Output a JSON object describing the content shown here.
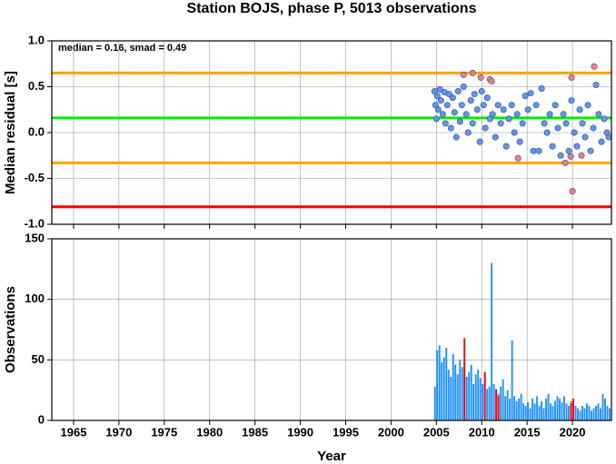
{
  "chart_data": [
    {
      "type": "scatter",
      "title": "Station BOJS, phase P, 5013 observations",
      "ylabel": "Median residual [s]",
      "annotation": "median = 0.16, smad = 0.49",
      "xlim": [
        1962.6,
        2024.3
      ],
      "xticks": [
        1965,
        1970,
        1975,
        1980,
        1985,
        1990,
        1995,
        2000,
        2005,
        2010,
        2015,
        2020
      ],
      "ylim": [
        -1,
        1
      ],
      "yticks": [
        {
          "value": -1,
          "label": "-1.0"
        },
        {
          "value": -0.5,
          "label": "-0.5"
        },
        {
          "value": 0,
          "label": "0.0"
        },
        {
          "value": 0.5,
          "label": "0.5"
        },
        {
          "value": 1,
          "label": "1.0"
        }
      ],
      "grid": true,
      "reference_lines": [
        {
          "value": 0.65,
          "color": "#ffa500"
        },
        {
          "value": 0.16,
          "color": "#00ee00"
        },
        {
          "value": -0.33,
          "color": "#ffa500"
        },
        {
          "value": -0.81,
          "color": "#ff0000"
        }
      ],
      "series": [
        {
          "color": "#6495ed",
          "x": [
            2004.8,
            2004.9,
            2005.0,
            2005.1,
            2005.2,
            2005.4,
            2005.5,
            2005.7,
            2005.9,
            2006.0,
            2006.2,
            2006.4,
            2006.6,
            2006.8,
            2007.0,
            2007.2,
            2007.4,
            2007.6,
            2007.8,
            2008.0,
            2008.3,
            2008.5,
            2008.8,
            2009.0,
            2009.2,
            2009.5,
            2009.8,
            2010.0,
            2010.2,
            2010.4,
            2010.6,
            2010.9,
            2011.2,
            2011.5,
            2011.8,
            2012.1,
            2012.4,
            2012.7,
            2013.0,
            2013.3,
            2013.6,
            2013.9,
            2014.2,
            2014.5,
            2014.8,
            2015.1,
            2015.4,
            2015.7,
            2016.0,
            2016.3,
            2016.6,
            2016.9,
            2017.2,
            2017.5,
            2017.8,
            2018.1,
            2018.4,
            2018.7,
            2019.0,
            2019.3,
            2019.6,
            2019.9,
            2020.2,
            2020.5,
            2020.8,
            2021.1,
            2021.4,
            2021.7,
            2022.0,
            2022.3,
            2022.6,
            2022.9,
            2023.2,
            2023.5,
            2023.8,
            2024.0
          ],
          "values": [
            0.45,
            0.3,
            0.15,
            0.4,
            0.25,
            0.47,
            0.35,
            0.2,
            0.44,
            0.1,
            0.3,
            0.42,
            0.05,
            0.38,
            0.22,
            -0.05,
            0.45,
            0.12,
            0.3,
            0.5,
            0.2,
            0.0,
            0.35,
            0.1,
            0.42,
            0.25,
            -0.1,
            0.45,
            0.3,
            0.05,
            0.38,
            0.15,
            0.2,
            -0.05,
            0.3,
            0.1,
            0.25,
            -0.15,
            0.15,
            0.3,
            0.0,
            0.2,
            -0.1,
            0.1,
            0.4,
            0.25,
            0.43,
            -0.2,
            0.3,
            -0.2,
            0.48,
            0.1,
            0.0,
            0.2,
            -0.15,
            0.3,
            0.05,
            -0.25,
            0.2,
            0.1,
            -0.2,
            0.35,
            0.0,
            -0.15,
            0.25,
            0.1,
            -0.05,
            0.3,
            -0.2,
            0.05,
            0.52,
            0.2,
            -0.1,
            0.15,
            0.0,
            -0.05
          ]
        },
        {
          "color": "#f08080",
          "x": [
            2008.0,
            2009.0,
            2009.9,
            2010.9,
            2011.1,
            2014.0,
            2019.2,
            2019.9,
            2019.8,
            2020.0,
            2021.0,
            2022.4
          ],
          "values": [
            0.63,
            0.65,
            0.6,
            0.58,
            0.56,
            -0.28,
            -0.33,
            0.6,
            -0.26,
            -0.64,
            -0.25,
            0.72
          ]
        }
      ]
    },
    {
      "type": "histogram",
      "ylabel": "Observations",
      "xlabel": "Year",
      "xlim": [
        1962.6,
        2024.3
      ],
      "xticks": [
        1965,
        1970,
        1975,
        1980,
        1985,
        1990,
        1995,
        2000,
        2005,
        2010,
        2015,
        2020
      ],
      "ylim": [
        0,
        150
      ],
      "yticks": [
        0,
        50,
        100,
        150
      ],
      "grid": true,
      "bins": [
        2004.75,
        2005.0,
        2005.25,
        2005.5,
        2005.75,
        2006.0,
        2006.25,
        2006.5,
        2006.75,
        2007.0,
        2007.25,
        2007.5,
        2007.75,
        2008.0,
        2008.25,
        2008.5,
        2008.75,
        2009.0,
        2009.25,
        2009.5,
        2009.75,
        2010.0,
        2010.25,
        2010.5,
        2010.75,
        2011.0,
        2011.25,
        2011.5,
        2011.75,
        2012.0,
        2012.25,
        2012.5,
        2012.75,
        2013.0,
        2013.25,
        2013.5,
        2013.75,
        2014.0,
        2014.25,
        2014.5,
        2014.75,
        2015.0,
        2015.25,
        2015.5,
        2015.75,
        2016.0,
        2016.25,
        2016.5,
        2016.75,
        2017.0,
        2017.25,
        2017.5,
        2017.75,
        2018.0,
        2018.25,
        2018.5,
        2018.75,
        2019.0,
        2019.25,
        2019.5,
        2019.75,
        2020.0,
        2020.25,
        2020.5,
        2020.75,
        2021.0,
        2021.25,
        2021.5,
        2021.75,
        2022.0,
        2022.25,
        2022.5,
        2022.75,
        2023.0,
        2023.25,
        2023.5,
        2023.75,
        2024.0,
        2024.25
      ],
      "series": [
        {
          "color": "#1e90ff",
          "values": [
            28,
            58,
            62,
            48,
            52,
            60,
            42,
            36,
            55,
            46,
            38,
            50,
            44,
            48,
            36,
            40,
            46,
            30,
            38,
            42,
            35,
            30,
            40,
            26,
            28,
            130,
            30,
            26,
            22,
            28,
            34,
            20,
            25,
            18,
            66,
            20,
            16,
            18,
            22,
            14,
            12,
            15,
            10,
            18,
            14,
            20,
            12,
            16,
            10,
            18,
            22,
            14,
            12,
            16,
            20,
            18,
            15,
            20,
            14,
            12,
            16,
            14,
            12,
            10,
            8,
            12,
            10,
            14,
            12,
            8,
            10,
            12,
            14,
            10,
            22,
            18,
            12,
            10
          ]
        },
        {
          "color": "#ff0000",
          "values": [
            null,
            null,
            null,
            null,
            null,
            null,
            null,
            null,
            null,
            null,
            null,
            null,
            null,
            68,
            null,
            null,
            null,
            null,
            null,
            null,
            null,
            null,
            40,
            null,
            null,
            null,
            null,
            25,
            20,
            null,
            null,
            null,
            null,
            null,
            null,
            null,
            null,
            null,
            null,
            null,
            null,
            null,
            null,
            null,
            null,
            null,
            null,
            null,
            null,
            null,
            null,
            null,
            null,
            null,
            null,
            null,
            null,
            null,
            null,
            null,
            14,
            18,
            null,
            null,
            null,
            null,
            null,
            null,
            null,
            null,
            null,
            null,
            null,
            null,
            null,
            null,
            null,
            null
          ]
        }
      ]
    }
  ]
}
